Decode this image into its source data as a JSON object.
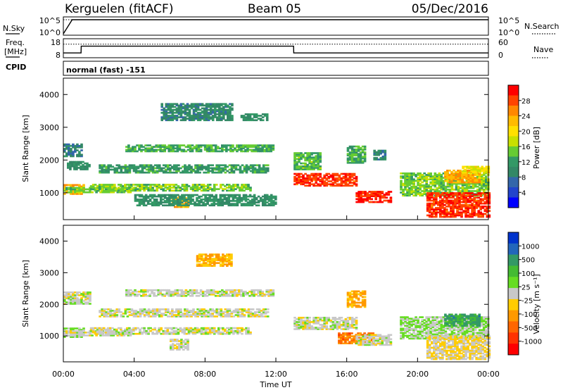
{
  "header": {
    "station": "Kerguelen (fitACF)",
    "beam": "Beam 05",
    "date": "05/Dec/2016"
  },
  "top_panels": {
    "nsky_label": "N.Sky",
    "nsky_ticks": [
      "10^5",
      "10^0"
    ],
    "nsearch_label": "N.Search",
    "nsearch_ticks": [
      "10^5",
      "10^0"
    ],
    "freq_label_line1": "Freq.",
    "freq_label_line2": "[MHz]",
    "freq_ticks": [
      "18",
      "8"
    ],
    "nave_label": "Nave",
    "nave_ticks": [
      "60",
      "0"
    ],
    "cpid_label": "CPID",
    "cpid_text": "normal (fast) -151"
  },
  "x_axis": {
    "ticks": [
      "00:00",
      "04:00",
      "08:00",
      "12:00",
      "16:00",
      "20:00",
      "00:00"
    ],
    "label": "Time UT"
  },
  "power_colorbar": {
    "label": "Power [dB]",
    "ticks": [
      "28",
      "24",
      "20",
      "16",
      "12",
      "8",
      "4"
    ],
    "colors": [
      "#ff0000",
      "#ff4400",
      "#ff8800",
      "#ffbb00",
      "#ffe000",
      "#c8e000",
      "#66cc33",
      "#339966",
      "#338866",
      "#3366aa",
      "#2244cc",
      "#0000ff"
    ]
  },
  "velocity_colorbar": {
    "label": "Velocity [m s⁻¹]",
    "ticks": [
      "1000",
      "500",
      "100",
      "25",
      "-25",
      "-100",
      "-500",
      "-1000"
    ],
    "colors": [
      "#0033cc",
      "#2266bb",
      "#339966",
      "#44bb33",
      "#66dd22",
      "#c8c8c8",
      "#ffcc00",
      "#ff9900",
      "#ff6600",
      "#ff3300",
      "#ff0000"
    ]
  },
  "chart_data": [
    {
      "type": "line",
      "title": "N.Sky / N.Search",
      "x": [
        0,
        0.5,
        1,
        2,
        4,
        6,
        8,
        10,
        12,
        13,
        14,
        16,
        18,
        20,
        22,
        24
      ],
      "series": [
        {
          "name": "N.Sky",
          "values": [
            1,
            100000,
            100000,
            100000,
            100000,
            100000,
            100000,
            100000,
            100000,
            100000,
            100000,
            100000,
            100000,
            100000,
            100000,
            100000
          ]
        },
        {
          "name": "N.Search",
          "values": [
            100000,
            100000,
            100000,
            100000,
            100000,
            100000,
            100000,
            100000,
            100000,
            100000,
            100000,
            100000,
            100000,
            100000,
            100000,
            100000
          ]
        }
      ],
      "ylim": [
        1,
        100000
      ]
    },
    {
      "type": "line",
      "title": "Freq. / Nave",
      "x": [
        0,
        1,
        1.01,
        13,
        13.01,
        24
      ],
      "series": [
        {
          "name": "Freq. [MHz]",
          "values": [
            10,
            10,
            14,
            14,
            10,
            10
          ]
        },
        {
          "name": "Nave",
          "values": [
            30,
            30,
            30,
            30,
            30,
            30
          ]
        }
      ],
      "ylim": [
        8,
        18
      ]
    },
    {
      "type": "heatmap",
      "title": "Power [dB]",
      "xlabel": "",
      "ylabel": "Slant Range [km]",
      "xlim": [
        0,
        24
      ],
      "ylim": [
        180,
        4500
      ],
      "yticks": [
        1000,
        2000,
        3000,
        4000
      ],
      "zlim": [
        0,
        30
      ],
      "blobs": [
        {
          "t": [
            0.0,
            1.2
          ],
          "r": [
            950,
            1250
          ],
          "z": 22
        },
        {
          "t": [
            0.0,
            3.8
          ],
          "r": [
            1000,
            1150
          ],
          "z": 14
        },
        {
          "t": [
            0.2,
            1.5
          ],
          "r": [
            1700,
            1950
          ],
          "z": 10
        },
        {
          "t": [
            0.0,
            1.0
          ],
          "r": [
            2100,
            2500
          ],
          "z": 8
        },
        {
          "t": [
            1.5,
            10.5
          ],
          "r": [
            1050,
            1250
          ],
          "z": 14
        },
        {
          "t": [
            2.0,
            11.5
          ],
          "r": [
            1600,
            1850
          ],
          "z": 11
        },
        {
          "t": [
            3.5,
            11.8
          ],
          "r": [
            2250,
            2450
          ],
          "z": 12
        },
        {
          "t": [
            6.0,
            7.0
          ],
          "r": [
            550,
            900
          ],
          "z": 22
        },
        {
          "t": [
            4.0,
            12.0
          ],
          "r": [
            600,
            950
          ],
          "z": 10
        },
        {
          "t": [
            13.0,
            16.5
          ],
          "r": [
            1200,
            1600
          ],
          "z": 27
        },
        {
          "t": [
            13.0,
            14.5
          ],
          "r": [
            1700,
            2200
          ],
          "z": 13
        },
        {
          "t": [
            16.5,
            18.5
          ],
          "r": [
            700,
            1050
          ],
          "z": 28
        },
        {
          "t": [
            16.0,
            17.0
          ],
          "r": [
            1900,
            2400
          ],
          "z": 12
        },
        {
          "t": [
            17.5,
            18.2
          ],
          "r": [
            2000,
            2300
          ],
          "z": 9
        },
        {
          "t": [
            19.0,
            24.0
          ],
          "r": [
            900,
            1600
          ],
          "z": 14
        },
        {
          "t": [
            21.5,
            23.5
          ],
          "r": [
            1300,
            1700
          ],
          "z": 22
        },
        {
          "t": [
            20.5,
            24.0
          ],
          "r": [
            250,
            1000
          ],
          "z": 27
        },
        {
          "t": [
            22.5,
            24.0
          ],
          "r": [
            1600,
            1800
          ],
          "z": 18
        },
        {
          "t": [
            5.5,
            9.5
          ],
          "r": [
            3200,
            3700
          ],
          "z": 9
        },
        {
          "t": [
            10.0,
            11.5
          ],
          "r": [
            3200,
            3400
          ],
          "z": 10
        }
      ]
    },
    {
      "type": "heatmap",
      "title": "Velocity [m s⁻¹]",
      "xlabel": "Time UT",
      "ylabel": "Slant Range [km]",
      "xlim": [
        0,
        24
      ],
      "ylim": [
        180,
        4500
      ],
      "yticks": [
        1000,
        2000,
        3000,
        4000
      ],
      "zlim": [
        -1000,
        1000
      ],
      "blobs": [
        {
          "t": [
            0.0,
            1.2
          ],
          "r": [
            950,
            1250
          ],
          "z": 100
        },
        {
          "t": [
            0.0,
            3.8
          ],
          "r": [
            1000,
            1150
          ],
          "z": 0
        },
        {
          "t": [
            1.5,
            10.5
          ],
          "r": [
            1050,
            1250
          ],
          "z": 0
        },
        {
          "t": [
            2.0,
            11.5
          ],
          "r": [
            1600,
            1850
          ],
          "z": 0
        },
        {
          "t": [
            3.5,
            11.8
          ],
          "r": [
            2250,
            2450
          ],
          "z": 0
        },
        {
          "t": [
            6.0,
            7.0
          ],
          "r": [
            550,
            900
          ],
          "z": 0
        },
        {
          "t": [
            13.0,
            16.5
          ],
          "r": [
            1200,
            1600
          ],
          "z": 0
        },
        {
          "t": [
            15.5,
            17.5
          ],
          "r": [
            750,
            1100
          ],
          "z": -500
        },
        {
          "t": [
            16.5,
            18.5
          ],
          "r": [
            700,
            1050
          ],
          "z": 0
        },
        {
          "t": [
            16.0,
            17.0
          ],
          "r": [
            1900,
            2400
          ],
          "z": -300
        },
        {
          "t": [
            19.0,
            24.0
          ],
          "r": [
            900,
            1600
          ],
          "z": 100
        },
        {
          "t": [
            21.5,
            23.5
          ],
          "r": [
            1300,
            1700
          ],
          "z": 500
        },
        {
          "t": [
            20.5,
            24.0
          ],
          "r": [
            250,
            1000
          ],
          "z": -100
        },
        {
          "t": [
            7.5,
            9.5
          ],
          "r": [
            3200,
            3600
          ],
          "z": -300
        },
        {
          "t": [
            0.0,
            1.5
          ],
          "r": [
            2000,
            2400
          ],
          "z": 0
        }
      ]
    }
  ]
}
